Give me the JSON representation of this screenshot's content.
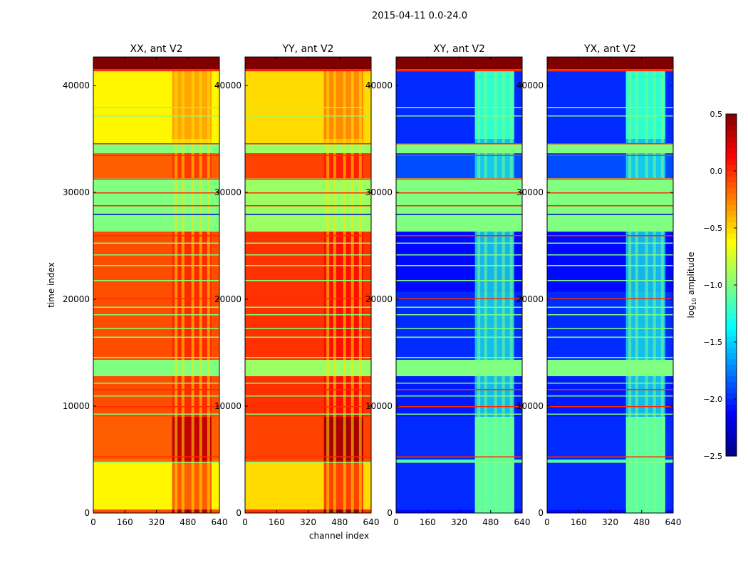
{
  "chart_data": {
    "type": "heatmap",
    "suptitle": "2015-04-11 0.0-24.0",
    "ylabel": "time index",
    "xlabel": "channel index",
    "xlim": [
      0,
      640
    ],
    "ylim": [
      0,
      42667
    ],
    "xticks": [
      "0",
      "160",
      "320",
      "480",
      "640"
    ],
    "xtick_values": [
      0,
      160,
      320,
      480,
      640
    ],
    "yticks": [
      "0",
      "10000",
      "20000",
      "30000",
      "40000"
    ],
    "ytick_values": [
      0,
      10000,
      20000,
      30000,
      40000
    ],
    "colorbar": {
      "label_main": "log",
      "label_sub": "10",
      "label_rest": " amplitude",
      "range": [
        -2.5,
        0.5
      ],
      "colormap": "jet",
      "ticks": [
        "0.5",
        "0.0",
        "−0.5",
        "−1.0",
        "−1.5",
        "−2.0",
        "−2.5"
      ],
      "tick_values": [
        0.5,
        0.0,
        -0.5,
        -1.0,
        -1.5,
        -2.0,
        -2.5
      ]
    },
    "panels": [
      {
        "title": "XX, ant V2",
        "kind": "parallel",
        "offset": 0.0
      },
      {
        "title": "YY, ant V2",
        "kind": "parallel",
        "offset": 0.08
      },
      {
        "title": "XY, ant V2",
        "kind": "cross",
        "offset": 0.0
      },
      {
        "title": "YX, ant V2",
        "kind": "cross",
        "offset": 0.0
      }
    ],
    "bands": [
      {
        "t": [
          0,
          330
        ],
        "parallel": -0.1,
        "cross": -2.1
      },
      {
        "t": [
          330,
          4700
        ],
        "parallel": -0.6,
        "cross": -2.0
      },
      {
        "t": [
          4700,
          5000
        ],
        "parallel": -0.2,
        "cross": -1.2
      },
      {
        "t": [
          5000,
          9000
        ],
        "parallel": -0.15,
        "cross": -2.0
      },
      {
        "t": [
          9000,
          12800
        ],
        "parallel": -0.1,
        "cross": -2.05
      },
      {
        "t": [
          12800,
          14330
        ],
        "parallel": -1.0,
        "cross": -1.0
      },
      {
        "t": [
          14330,
          14670
        ],
        "parallel": -0.1,
        "cross": -2.0
      },
      {
        "t": [
          14670,
          20670
        ],
        "parallel": -0.1,
        "cross": -2.0
      },
      {
        "t": [
          20670,
          26330
        ],
        "parallel": -0.1,
        "cross": -2.1
      },
      {
        "t": [
          26330,
          31330
        ],
        "parallel": -1.0,
        "cross": -1.0
      },
      {
        "t": [
          31330,
          33670
        ],
        "parallel": -0.15,
        "cross": -1.9
      },
      {
        "t": [
          33670,
          34530
        ],
        "parallel": -1.0,
        "cross": -1.0
      },
      {
        "t": [
          34530,
          41330
        ],
        "parallel": -0.6,
        "cross": -2.0
      },
      {
        "t": [
          41330,
          41530
        ],
        "parallel": 0.0,
        "cross": 0.0
      },
      {
        "t": [
          41530,
          42667
        ],
        "parallel": 0.5,
        "cross": 0.5
      }
    ],
    "flag_lines": [
      {
        "t": 4800,
        "value": -1.0
      },
      {
        "t": 5300,
        "value": 0.0
      },
      {
        "t": 9300,
        "value": -1.0
      },
      {
        "t": 10000,
        "value": 0.0
      },
      {
        "t": 11000,
        "value": -1.0
      },
      {
        "t": 11600,
        "value": 0.0
      },
      {
        "t": 12200,
        "value": -1.0
      },
      {
        "t": 14600,
        "value": -1.0
      },
      {
        "t": 16500,
        "value": -1.0
      },
      {
        "t": 17300,
        "value": -1.0
      },
      {
        "t": 18600,
        "value": -1.0
      },
      {
        "t": 19300,
        "value": -1.0
      },
      {
        "t": 20100,
        "value": 0.0
      },
      {
        "t": 21800,
        "value": -1.0
      },
      {
        "t": 23200,
        "value": -1.0
      },
      {
        "t": 24200,
        "value": -1.0
      },
      {
        "t": 25300,
        "value": -1.0
      },
      {
        "t": 26000,
        "value": 0.0
      },
      {
        "t": 28000,
        "value": -2.3
      },
      {
        "t": 28800,
        "value": 0.0
      },
      {
        "t": 30000,
        "value": 0.0
      },
      {
        "t": 31300,
        "value": 0.0
      },
      {
        "t": 33500,
        "value": 0.0
      },
      {
        "t": 34600,
        "value": 0.0
      },
      {
        "t": 37200,
        "value": -1.0
      },
      {
        "t": 38000,
        "value": -1.0
      },
      {
        "t": 41500,
        "value": 0.0
      }
    ],
    "rfi": {
      "channels": [
        400,
        600
      ],
      "stripes": [
        420,
        455,
        505,
        545,
        585
      ],
      "active_times": [
        [
          0,
          9000
        ],
        [
          35000,
          41400
        ]
      ],
      "parallel_boost": 0.45,
      "cross_level": -1.1
    }
  }
}
